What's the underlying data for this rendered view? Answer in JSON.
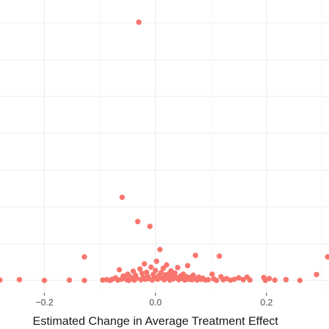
{
  "chart_data": {
    "type": "scatter",
    "xlabel": "Estimated Change in Average Treatment Effect",
    "ylabel": "",
    "xlim": [
      -0.28,
      0.31
    ],
    "ylim": [
      -0.1,
      7.5
    ],
    "grid": true,
    "colors": {
      "point": "#F8766D",
      "panel": "#FFFFFF",
      "grid": "#EBEBEB"
    },
    "x_ticks": [
      {
        "value": -0.2,
        "label": "−0.2"
      },
      {
        "value": 0.0,
        "label": "0.0"
      },
      {
        "value": 0.2,
        "label": "0.2"
      }
    ],
    "x_minor_ticks": [
      -0.1,
      0.1,
      0.3
    ],
    "y_gridlines": [
      0,
      1,
      2,
      3,
      4,
      5,
      6,
      7
    ],
    "points": [
      {
        "x": -0.28,
        "y": 0.01
      },
      {
        "x": -0.245,
        "y": 0.02
      },
      {
        "x": -0.2,
        "y": 0.0
      },
      {
        "x": -0.155,
        "y": 0.01
      },
      {
        "x": -0.128,
        "y": 0.0
      },
      {
        "x": -0.128,
        "y": 0.64
      },
      {
        "x": -0.095,
        "y": 0.01
      },
      {
        "x": -0.088,
        "y": 0.02
      },
      {
        "x": -0.082,
        "y": 0.0
      },
      {
        "x": -0.078,
        "y": 0.03
      },
      {
        "x": -0.072,
        "y": 0.07
      },
      {
        "x": -0.068,
        "y": 0.01
      },
      {
        "x": -0.065,
        "y": 0.29
      },
      {
        "x": -0.062,
        "y": 0.03
      },
      {
        "x": -0.06,
        "y": 2.26
      },
      {
        "x": -0.058,
        "y": 0.12
      },
      {
        "x": -0.055,
        "y": 0.05
      },
      {
        "x": -0.052,
        "y": 0.02
      },
      {
        "x": -0.05,
        "y": 0.17
      },
      {
        "x": -0.048,
        "y": 0.0
      },
      {
        "x": -0.045,
        "y": 0.09
      },
      {
        "x": -0.042,
        "y": 0.04
      },
      {
        "x": -0.04,
        "y": 0.25
      },
      {
        "x": -0.038,
        "y": 0.01
      },
      {
        "x": -0.036,
        "y": 0.14
      },
      {
        "x": -0.034,
        "y": 0.06
      },
      {
        "x": -0.032,
        "y": 1.6
      },
      {
        "x": -0.03,
        "y": 7.02
      },
      {
        "x": -0.028,
        "y": 0.31
      },
      {
        "x": -0.026,
        "y": 0.02
      },
      {
        "x": -0.024,
        "y": 0.19
      },
      {
        "x": -0.022,
        "y": 0.08
      },
      {
        "x": -0.02,
        "y": 0.45
      },
      {
        "x": -0.018,
        "y": 0.03
      },
      {
        "x": -0.016,
        "y": 0.22
      },
      {
        "x": -0.014,
        "y": 0.11
      },
      {
        "x": -0.012,
        "y": 0.05
      },
      {
        "x": -0.01,
        "y": 1.47
      },
      {
        "x": -0.008,
        "y": 0.36
      },
      {
        "x": -0.006,
        "y": 0.01
      },
      {
        "x": -0.004,
        "y": 0.16
      },
      {
        "x": -0.002,
        "y": 0.07
      },
      {
        "x": 0.0,
        "y": 0.27
      },
      {
        "x": 0.002,
        "y": 0.52
      },
      {
        "x": 0.004,
        "y": 0.03
      },
      {
        "x": 0.006,
        "y": 0.13
      },
      {
        "x": 0.008,
        "y": 0.84
      },
      {
        "x": 0.01,
        "y": 0.21
      },
      {
        "x": 0.012,
        "y": 0.06
      },
      {
        "x": 0.014,
        "y": 0.33
      },
      {
        "x": 0.016,
        "y": 0.02
      },
      {
        "x": 0.018,
        "y": 0.15
      },
      {
        "x": 0.02,
        "y": 0.42
      },
      {
        "x": 0.022,
        "y": 0.09
      },
      {
        "x": 0.024,
        "y": 0.18
      },
      {
        "x": 0.026,
        "y": 0.01
      },
      {
        "x": 0.028,
        "y": 0.26
      },
      {
        "x": 0.03,
        "y": 0.11
      },
      {
        "x": 0.032,
        "y": 0.04
      },
      {
        "x": 0.035,
        "y": 0.2
      },
      {
        "x": 0.038,
        "y": 0.07
      },
      {
        "x": 0.04,
        "y": 0.35
      },
      {
        "x": 0.042,
        "y": 0.02
      },
      {
        "x": 0.045,
        "y": 0.12
      },
      {
        "x": 0.048,
        "y": 0.05
      },
      {
        "x": 0.05,
        "y": 0.17
      },
      {
        "x": 0.053,
        "y": 0.01
      },
      {
        "x": 0.056,
        "y": 0.1
      },
      {
        "x": 0.058,
        "y": 0.4
      },
      {
        "x": 0.06,
        "y": 0.03
      },
      {
        "x": 0.063,
        "y": 0.08
      },
      {
        "x": 0.066,
        "y": 0.02
      },
      {
        "x": 0.068,
        "y": 0.14
      },
      {
        "x": 0.07,
        "y": 0.05
      },
      {
        "x": 0.072,
        "y": 0.68
      },
      {
        "x": 0.075,
        "y": 0.01
      },
      {
        "x": 0.078,
        "y": 0.09
      },
      {
        "x": 0.082,
        "y": 0.03
      },
      {
        "x": 0.085,
        "y": 0.06
      },
      {
        "x": 0.09,
        "y": 0.01
      },
      {
        "x": 0.095,
        "y": 0.02
      },
      {
        "x": 0.102,
        "y": 0.17
      },
      {
        "x": 0.105,
        "y": 0.04
      },
      {
        "x": 0.11,
        "y": 0.0
      },
      {
        "x": 0.115,
        "y": 0.66
      },
      {
        "x": 0.118,
        "y": 0.1
      },
      {
        "x": 0.122,
        "y": 0.02
      },
      {
        "x": 0.128,
        "y": 0.05
      },
      {
        "x": 0.135,
        "y": 0.01
      },
      {
        "x": 0.142,
        "y": 0.03
      },
      {
        "x": 0.15,
        "y": 0.07
      },
      {
        "x": 0.158,
        "y": 0.02
      },
      {
        "x": 0.165,
        "y": 0.09
      },
      {
        "x": 0.17,
        "y": 0.01
      },
      {
        "x": 0.195,
        "y": 0.08
      },
      {
        "x": 0.198,
        "y": 0.0
      },
      {
        "x": 0.205,
        "y": 0.05
      },
      {
        "x": 0.215,
        "y": 0.01
      },
      {
        "x": 0.235,
        "y": 0.02
      },
      {
        "x": 0.26,
        "y": 0.0
      },
      {
        "x": 0.29,
        "y": 0.16
      },
      {
        "x": 0.31,
        "y": 0.64
      }
    ]
  }
}
